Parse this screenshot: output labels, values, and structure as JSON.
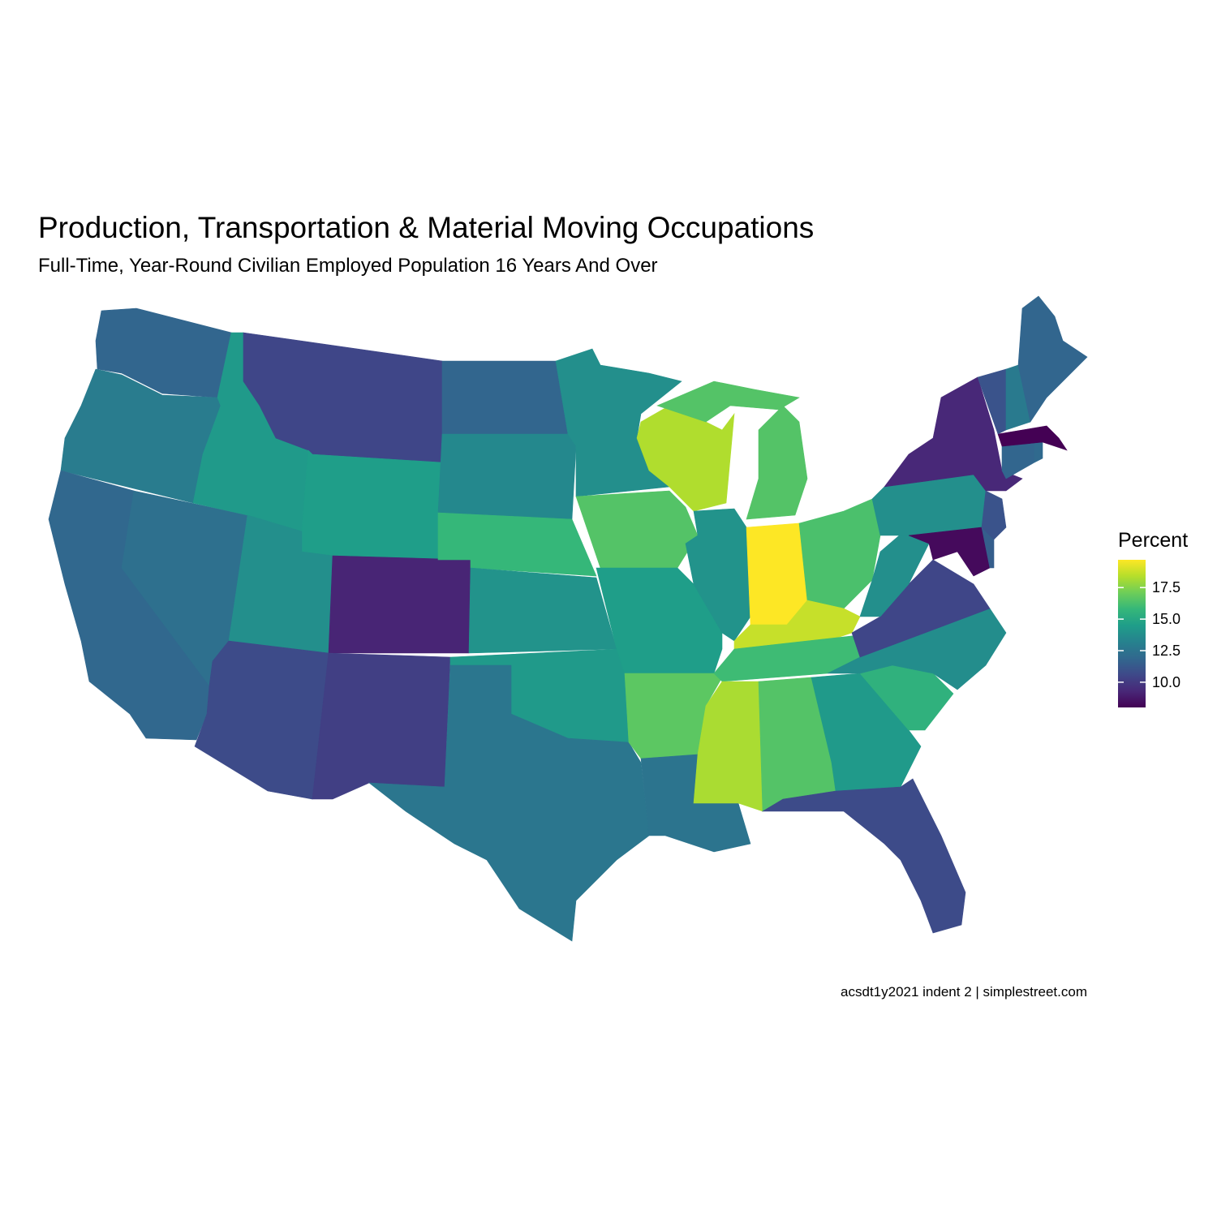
{
  "chart_data": {
    "type": "choropleth",
    "title": "Production, Transportation & Material Moving Occupations",
    "subtitle": "Full-Time, Year-Round Civilian Employed Population 16 Years And Over",
    "caption": "acsdt1y2021 indent 2 | simplestreet.com",
    "legend_title": "Percent",
    "colormap": "viridis",
    "clim": [
      8.0,
      19.7
    ],
    "ticks": [
      {
        "value": 10,
        "label": "10.0"
      },
      12.5,
      {
        "value": 15,
        "label": "15.0"
      },
      17.5
    ],
    "values": [
      11.8,
      12.9,
      11.9,
      12.3,
      14.3,
      10.5,
      14.5,
      13.8,
      9.2,
      10.7,
      10.2,
      11.8,
      13.5,
      15.8,
      14.0,
      14.3,
      12.6,
      13.8,
      16.5,
      14.5,
      16.7,
      12.5,
      18.3,
      14.0,
      16.5,
      19.7,
      16.3,
      18.7,
      16.0,
      18.2,
      16.5,
      14.3,
      10.7,
      15.5,
      13.7,
      10.5,
      13.8,
      13.8,
      9.3,
      8.3,
      11.5,
      11.0,
      11.8,
      12.0,
      8.0,
      11.0,
      12.8,
      11.8
    ]
  }
}
